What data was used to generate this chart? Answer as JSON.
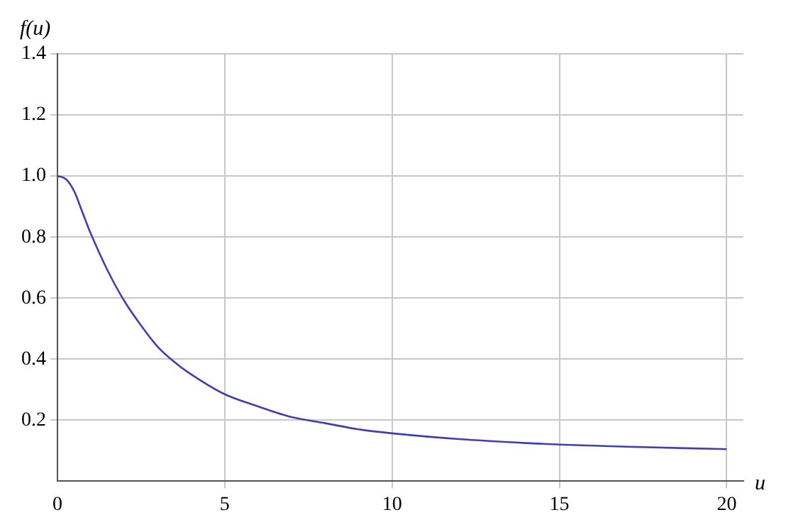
{
  "chart_data": {
    "type": "line",
    "xlabel": "u",
    "ylabel": "f(u)",
    "x": [
      0,
      0.25,
      0.5,
      0.75,
      1,
      1.5,
      2,
      2.5,
      3,
      3.5,
      4,
      5,
      6,
      7,
      8,
      9,
      10,
      12,
      14,
      15,
      17,
      20
    ],
    "series": [
      {
        "color": "#3f3fb0",
        "values": [
          1.0,
          0.99,
          0.95,
          0.88,
          0.81,
          0.69,
          0.59,
          0.51,
          0.44,
          0.39,
          0.35,
          0.285,
          0.245,
          0.21,
          0.19,
          0.17,
          0.157,
          0.138,
          0.125,
          0.12,
          0.113,
          0.105
        ]
      }
    ],
    "xlim": [
      0,
      20.5
    ],
    "ylim": [
      0,
      1.4
    ],
    "xticks": [
      0,
      5,
      10,
      15,
      20
    ],
    "yticks": [
      0.2,
      0.4,
      0.6,
      0.8,
      {
        "value": 1,
        "label": "1.0"
      },
      1.2,
      1.4
    ],
    "grid": true,
    "legend": false,
    "marker": "none",
    "line_style": "solid"
  }
}
